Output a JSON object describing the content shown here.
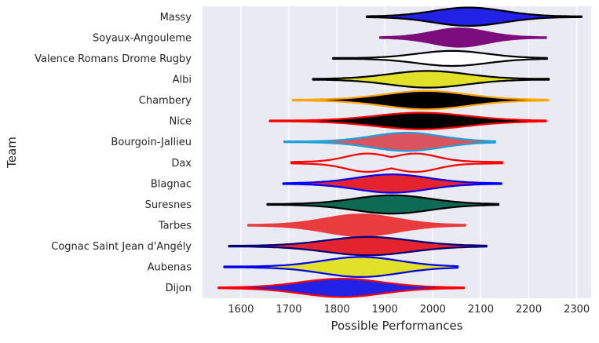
{
  "chart_data": {
    "type": "violin",
    "xlabel": "Possible Performances",
    "ylabel": "Team",
    "xlim": [
      1520,
      2330
    ],
    "x_ticks": [
      1600,
      1700,
      1800,
      1900,
      2000,
      2100,
      2200,
      2300
    ],
    "grid": "vertical",
    "background": "#eaeaf2",
    "series": [
      {
        "name": "Massy",
        "fill": "#2222e6",
        "line": "#000000",
        "min": 1862,
        "max": 2310,
        "median": 2075,
        "spread": 0.55,
        "shape": "wide-body"
      },
      {
        "name": "Soyaux-Angouleme",
        "fill": "#7c0d7c",
        "line": "#7c0d7c",
        "min": 1890,
        "max": 2236,
        "median": 2055,
        "spread": 0.55,
        "shape": "wide-body"
      },
      {
        "name": "Valence Romans Drome Rugby",
        "fill": "#ffffff",
        "line": "#000000",
        "min": 1792,
        "max": 2238,
        "median": 2040,
        "spread": 0.45,
        "shape": "wide-body"
      },
      {
        "name": "Albi",
        "fill": "#e1e12a",
        "line": "#000000",
        "min": 1750,
        "max": 2242,
        "median": 1990,
        "spread": 0.5,
        "shape": "wide-body"
      },
      {
        "name": "Chambery",
        "fill": "#000000",
        "line": "#ffa500",
        "min": 1708,
        "max": 2240,
        "median": 1985,
        "spread": 0.55,
        "shape": "wide-body"
      },
      {
        "name": "Nice",
        "fill": "#000000",
        "line": "#ff0000",
        "min": 1660,
        "max": 2236,
        "median": 1975,
        "spread": 0.5,
        "shape": "wide-body"
      },
      {
        "name": "Bourgoin-Jallieu",
        "fill": "#d9545f",
        "line": "#1ba3d9",
        "min": 1690,
        "max": 2130,
        "median": 1945,
        "spread": 0.55,
        "shape": "wide-body"
      },
      {
        "name": "Dax",
        "fill": "#eaeaf2",
        "line": "#ff0000",
        "min": 1705,
        "max": 2145,
        "median": 1920,
        "spread": 0.55,
        "shape": "twin-peak"
      },
      {
        "name": "Blagnac",
        "fill": "#e3232d",
        "line": "#0000ff",
        "min": 1688,
        "max": 2143,
        "median": 1915,
        "spread": 0.55,
        "shape": "wide-body"
      },
      {
        "name": "Suresnes",
        "fill": "#0d6b55",
        "line": "#000000",
        "min": 1655,
        "max": 2137,
        "median": 1915,
        "spread": 0.55,
        "shape": "wide-body"
      },
      {
        "name": "Tarbes",
        "fill": "#e83c3e",
        "line": "#e83c3e",
        "min": 1615,
        "max": 2068,
        "median": 1850,
        "spread": 0.65,
        "shape": "wide-body"
      },
      {
        "name": "Cognac Saint Jean d'Angély",
        "fill": "#e3232d",
        "line": "#00007a",
        "min": 1575,
        "max": 2112,
        "median": 1865,
        "spread": 0.55,
        "shape": "wide-body"
      },
      {
        "name": "Aubenas",
        "fill": "#e1e12a",
        "line": "#0000ee",
        "min": 1565,
        "max": 2052,
        "median": 1850,
        "spread": 0.6,
        "shape": "wide-body"
      },
      {
        "name": "Dijon",
        "fill": "#2222e6",
        "line": "#ff0000",
        "min": 1553,
        "max": 2065,
        "median": 1810,
        "spread": 0.55,
        "shape": "wide-body"
      }
    ]
  }
}
